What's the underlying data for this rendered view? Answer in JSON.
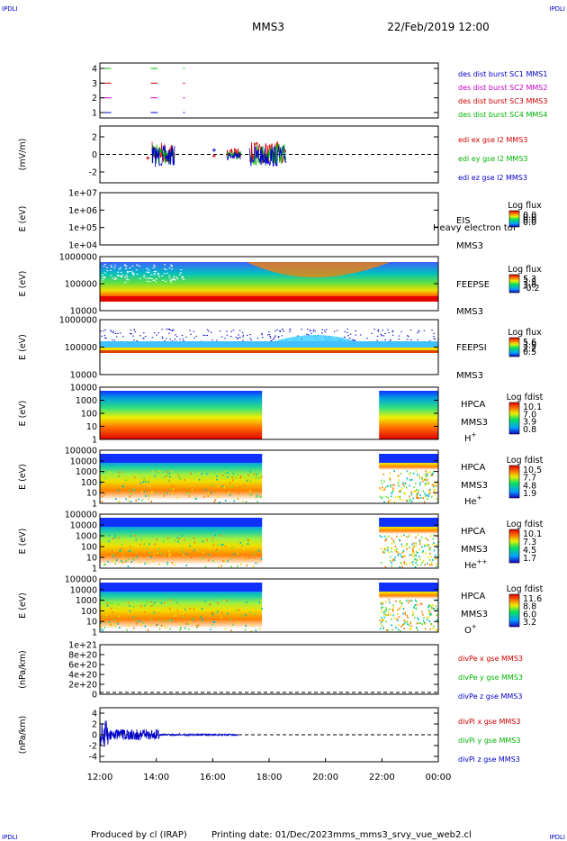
{
  "header": {
    "corner_left": "IPDLI",
    "corner_right": "IPDLI",
    "title": "MMS3",
    "datetime": "22/Feb/2019 12:00"
  },
  "footer": {
    "produced": "Produced by cl (IRAP)",
    "printing": "Printing date: 01/Dec/2023",
    "file": "mms_mms3_srvy_vue_web2.cl",
    "corner_left": "IPDLI",
    "corner_right": "IPDLI"
  },
  "colors": {
    "mms1": "#0000c8",
    "mms2": "#c800c8",
    "mms3": "#d00000",
    "mms4": "#00b400"
  },
  "chart_data": {
    "type": "multi-panel time series / spectrogram",
    "x_ticks": [
      "12:00",
      "14:00",
      "16:00",
      "18:00",
      "20:00",
      "22:00",
      "00:00"
    ],
    "x_hours": [
      12,
      14,
      16,
      18,
      20,
      22,
      24
    ],
    "panels": [
      {
        "id": "burst",
        "type": "indicator",
        "y_ticks": [
          "4",
          "3",
          "2",
          "1"
        ],
        "ylim": [
          0.5,
          4.5
        ],
        "legend": [
          {
            "text": "des dist burst SC1 MMS1",
            "color": "#0000c8"
          },
          {
            "text": "des dist burst SC2 MMS2",
            "color": "#c800c8"
          },
          {
            "text": "des dist burst SC3 MMS3",
            "color": "#d00000"
          },
          {
            "text": "des dist burst SC4 MMS4",
            "color": "#00b400"
          }
        ],
        "intervals": [
          [
            12.0,
            12.4
          ],
          [
            13.8,
            14.05
          ],
          [
            14.95,
            15.0
          ]
        ]
      },
      {
        "id": "edi",
        "type": "line",
        "ylabel": "(mV/m)",
        "y_ticks": [
          "2",
          "0",
          "-2"
        ],
        "ylim": [
          -3,
          3
        ],
        "legend": [
          {
            "text": "edi ex gse l2 MMS3",
            "color": "#d00000"
          },
          {
            "text": "edi ey gse l2 MMS3",
            "color": "#00b400"
          },
          {
            "text": "edi ez gse l2 MMS3",
            "color": "#0000c8"
          }
        ],
        "active_ranges": [
          [
            13.85,
            14.65
          ],
          [
            16.5,
            17.0
          ],
          [
            17.3,
            18.6
          ]
        ]
      },
      {
        "id": "eis",
        "type": "spectrogram",
        "ylabel": "E (eV)",
        "y_ticks": [
          "1e+07",
          "1e+06",
          "1e+05",
          "1e+04"
        ],
        "label_main": "EIS",
        "label_overlay": "Heavy electron tof",
        "label_sc": "MMS3",
        "cb_title": "Log flux",
        "cb_ticks": [
          "0.0",
          "0.0",
          "0.0",
          "0.0"
        ]
      },
      {
        "id": "feepse",
        "type": "spectrogram",
        "ylabel": "E (eV)",
        "y_ticks": [
          "1000000",
          "100000",
          "10000"
        ],
        "label_main": "FEEPSE",
        "label_sc": "MMS3",
        "cb_title": "Log flux",
        "cb_ticks": [
          "5.3",
          "3.5",
          "1.6",
          "-0.2"
        ]
      },
      {
        "id": "feepsi",
        "type": "spectrogram",
        "ylabel": "E (eV)",
        "y_ticks": [
          "1000000",
          "100000",
          "10000"
        ],
        "label_main": "FEEPSI",
        "label_sc": "MMS3",
        "cb_title": "Log flux",
        "cb_ticks": [
          "5.6",
          "3.9",
          "2.2",
          "0.5"
        ]
      },
      {
        "id": "hpca_h",
        "type": "spectrogram",
        "ylabel": "E (eV)",
        "y_ticks": [
          "10000",
          "1000",
          "100",
          "10",
          "1"
        ],
        "label_main": "HPCA",
        "label_sc": "MMS3",
        "species": "H",
        "species_sup": "+",
        "cb_title": "Log fdist",
        "cb_ticks": [
          "10.1",
          "7.0",
          "3.9",
          "0.8"
        ],
        "data_ranges": [
          [
            12.0,
            17.75
          ],
          [
            21.9,
            24.0
          ]
        ]
      },
      {
        "id": "hpca_he",
        "type": "spectrogram",
        "ylabel": "E (eV)",
        "y_ticks": [
          "100000",
          "10000",
          "1000",
          "100",
          "10",
          "1"
        ],
        "label_main": "HPCA",
        "label_sc": "MMS3",
        "species": "He",
        "species_sup": "+",
        "cb_title": "Log fdist",
        "cb_ticks": [
          "10.5",
          "7.7",
          "4.8",
          "1.9"
        ],
        "data_ranges": [
          [
            12.0,
            17.75
          ],
          [
            21.9,
            24.0
          ]
        ]
      },
      {
        "id": "hpca_hepp",
        "type": "spectrogram",
        "ylabel": "E (eV)",
        "y_ticks": [
          "100000",
          "10000",
          "1000",
          "100",
          "10",
          "1"
        ],
        "label_main": "HPCA",
        "label_sc": "MMS3",
        "species": "He",
        "species_sup": "++",
        "cb_title": "Log fdist",
        "cb_ticks": [
          "10.1",
          "7.3",
          "4.5",
          "1.7"
        ],
        "data_ranges": [
          [
            12.0,
            17.75
          ],
          [
            21.9,
            24.0
          ]
        ]
      },
      {
        "id": "hpca_o",
        "type": "spectrogram",
        "ylabel": "E (eV)",
        "y_ticks": [
          "100000",
          "10000",
          "1000",
          "100",
          "10",
          "1"
        ],
        "label_main": "HPCA",
        "label_sc": "MMS3",
        "species": "O",
        "species_sup": "+",
        "cb_title": "Log fdist",
        "cb_ticks": [
          "11.6",
          "8.8",
          "6.0",
          "3.2"
        ],
        "data_ranges": [
          [
            12.0,
            17.75
          ],
          [
            21.9,
            24.0
          ]
        ]
      },
      {
        "id": "divpe",
        "type": "line",
        "ylabel": "(nPa/km)",
        "y_ticks": [
          "1e+21",
          "8e+20",
          "6e+20",
          "4e+20",
          "2e+20",
          "0"
        ],
        "ylim": [
          0,
          1e+21
        ],
        "legend": [
          {
            "text": "divPe x gse MMS3",
            "color": "#d00000"
          },
          {
            "text": "divPe y gse MMS3",
            "color": "#00b400"
          },
          {
            "text": "divPe z gse MMS3",
            "color": "#0000c8"
          }
        ]
      },
      {
        "id": "divpi",
        "type": "line",
        "ylabel": "(nPa/km)",
        "y_ticks": [
          "4",
          "2",
          "0",
          "-2",
          "-4"
        ],
        "ylim": [
          -5,
          5
        ],
        "legend": [
          {
            "text": "divPi x gse MMS3",
            "color": "#d00000"
          },
          {
            "text": "divPi y gse MMS3",
            "color": "#00b400"
          },
          {
            "text": "divPi z gse MMS3",
            "color": "#0000c8"
          }
        ],
        "active_range": [
          12.0,
          16.9
        ]
      }
    ]
  }
}
